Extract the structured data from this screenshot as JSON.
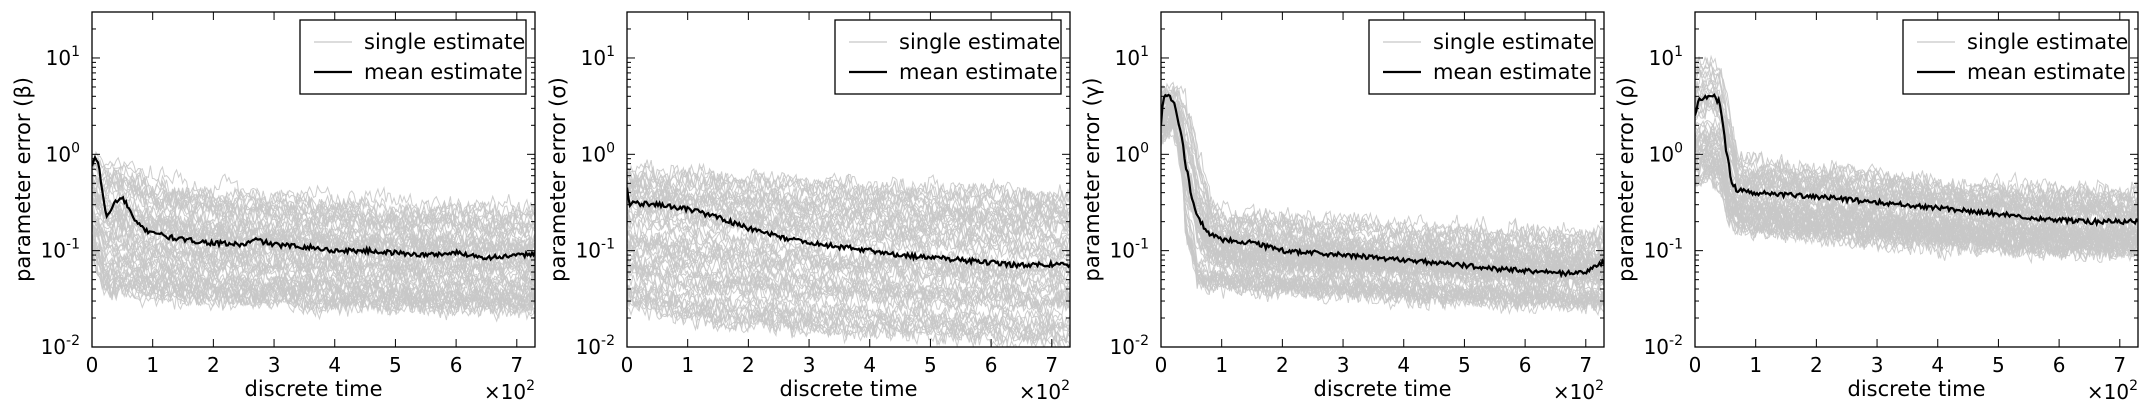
{
  "chart_data": [
    {
      "type": "line",
      "title": "",
      "xlabel": "discrete time",
      "ylabel": "parameter error (β)",
      "x_multiplier": "×10",
      "x_multiplier_exp": "2",
      "xlim": [
        0,
        7.3
      ],
      "ylim": [
        0.01,
        30
      ],
      "yscale": "log",
      "xticks": [
        "0",
        "1",
        "2",
        "3",
        "4",
        "5",
        "6",
        "7"
      ],
      "yticks": [
        "10",
        "10",
        "10",
        "10"
      ],
      "ytick_exps": [
        "-2",
        "-1",
        "0",
        "1"
      ],
      "legend": {
        "position": "top-right",
        "entries": [
          "single estimate",
          "mean estimate"
        ]
      },
      "series": [
        {
          "name": "mean estimate",
          "x": [
            0,
            0.05,
            0.1,
            0.15,
            0.2,
            0.25,
            0.3,
            0.35,
            0.4,
            0.5,
            0.6,
            0.7,
            0.8,
            0.9,
            1.0,
            1.2,
            1.5,
            2.0,
            2.5,
            2.7,
            3.0,
            3.5,
            4.0,
            4.5,
            5.0,
            5.5,
            6.0,
            6.5,
            7.0,
            7.3
          ],
          "values": [
            0.75,
            0.9,
            0.85,
            0.5,
            0.3,
            0.22,
            0.25,
            0.3,
            0.33,
            0.35,
            0.28,
            0.2,
            0.18,
            0.16,
            0.16,
            0.14,
            0.13,
            0.12,
            0.115,
            0.13,
            0.115,
            0.11,
            0.1,
            0.1,
            0.095,
            0.09,
            0.095,
            0.085,
            0.088,
            0.095
          ]
        },
        {
          "name": "single estimate",
          "band_x": [
            0,
            0.2,
            0.5,
            1,
            2,
            3,
            4,
            5,
            6,
            7,
            7.3
          ],
          "band_low": [
            0.1,
            0.04,
            0.04,
            0.035,
            0.033,
            0.03,
            0.028,
            0.027,
            0.026,
            0.025,
            0.025
          ],
          "band_high": [
            0.95,
            0.9,
            0.8,
            0.55,
            0.45,
            0.4,
            0.35,
            0.32,
            0.3,
            0.28,
            0.28
          ],
          "count": 60
        }
      ]
    },
    {
      "type": "line",
      "title": "",
      "xlabel": "discrete time",
      "ylabel": "parameter error (σ)",
      "x_multiplier": "×10",
      "x_multiplier_exp": "2",
      "xlim": [
        0,
        7.3
      ],
      "ylim": [
        0.01,
        30
      ],
      "yscale": "log",
      "xticks": [
        "0",
        "1",
        "2",
        "3",
        "4",
        "5",
        "6",
        "7"
      ],
      "yticks": [
        "10",
        "10",
        "10",
        "10"
      ],
      "ytick_exps": [
        "-2",
        "-1",
        "0",
        "1"
      ],
      "legend": {
        "position": "top-right",
        "entries": [
          "single estimate",
          "mean estimate"
        ]
      },
      "series": [
        {
          "name": "mean estimate",
          "x": [
            0,
            0.03,
            0.06,
            0.1,
            0.2,
            0.5,
            1.0,
            1.5,
            2.0,
            2.5,
            3.0,
            3.5,
            4.0,
            4.5,
            5.0,
            5.5,
            6.0,
            6.5,
            7.0,
            7.3
          ],
          "values": [
            0.45,
            0.32,
            0.3,
            0.31,
            0.31,
            0.3,
            0.27,
            0.22,
            0.17,
            0.14,
            0.12,
            0.11,
            0.1,
            0.09,
            0.085,
            0.08,
            0.075,
            0.07,
            0.072,
            0.072
          ]
        },
        {
          "name": "single estimate",
          "band_x": [
            0,
            0.5,
            1,
            2,
            3,
            4,
            5,
            6,
            7,
            7.3
          ],
          "band_low": [
            0.03,
            0.025,
            0.02,
            0.018,
            0.016,
            0.015,
            0.014,
            0.013,
            0.012,
            0.012
          ],
          "band_high": [
            0.65,
            0.65,
            0.6,
            0.55,
            0.5,
            0.45,
            0.42,
            0.4,
            0.38,
            0.35
          ],
          "count": 60
        }
      ]
    },
    {
      "type": "line",
      "title": "",
      "xlabel": "discrete time",
      "ylabel": "parameter error (γ)",
      "x_multiplier": "×10",
      "x_multiplier_exp": "2",
      "xlim": [
        0,
        7.3
      ],
      "ylim": [
        0.01,
        30
      ],
      "yscale": "log",
      "xticks": [
        "0",
        "1",
        "2",
        "3",
        "4",
        "5",
        "6",
        "7"
      ],
      "yticks": [
        "10",
        "10",
        "10",
        "10"
      ],
      "ytick_exps": [
        "-2",
        "-1",
        "0",
        "1"
      ],
      "legend": {
        "position": "top-right",
        "entries": [
          "single estimate",
          "mean estimate"
        ]
      },
      "series": [
        {
          "name": "mean estimate",
          "x": [
            0,
            0.03,
            0.05,
            0.1,
            0.2,
            0.3,
            0.4,
            0.5,
            0.6,
            0.7,
            0.8,
            1.0,
            1.5,
            2.0,
            2.5,
            3.0,
            3.5,
            4.0,
            4.5,
            5.0,
            5.5,
            6.0,
            6.3,
            6.6,
            7.0,
            7.3
          ],
          "values": [
            2.0,
            3.5,
            4.0,
            4.0,
            3.6,
            2.0,
            0.8,
            0.35,
            0.22,
            0.18,
            0.15,
            0.13,
            0.12,
            0.1,
            0.095,
            0.09,
            0.085,
            0.08,
            0.075,
            0.07,
            0.065,
            0.062,
            0.06,
            0.058,
            0.06,
            0.075
          ]
        },
        {
          "name": "single estimate",
          "band_x": [
            0,
            0.2,
            0.4,
            0.6,
            0.8,
            1,
            2,
            3,
            4,
            5,
            6,
            7,
            7.3
          ],
          "band_low": [
            1.5,
            2.0,
            0.15,
            0.05,
            0.045,
            0.045,
            0.04,
            0.038,
            0.035,
            0.033,
            0.03,
            0.03,
            0.03
          ],
          "band_high": [
            4.5,
            4.5,
            3.5,
            1.0,
            0.35,
            0.25,
            0.22,
            0.2,
            0.18,
            0.17,
            0.16,
            0.15,
            0.15
          ],
          "count": 60
        }
      ]
    },
    {
      "type": "line",
      "title": "",
      "xlabel": "discrete time",
      "ylabel": "parameter error (ρ)",
      "x_multiplier": "×10",
      "x_multiplier_exp": "2",
      "xlim": [
        0,
        7.3
      ],
      "ylim": [
        0.01,
        30
      ],
      "yscale": "log",
      "xticks": [
        "0",
        "1",
        "2",
        "3",
        "4",
        "5",
        "6",
        "7"
      ],
      "yticks": [
        "10",
        "10",
        "10",
        "10"
      ],
      "ytick_exps": [
        "-2",
        "-1",
        "0",
        "1"
      ],
      "legend": {
        "position": "top-right",
        "entries": [
          "single estimate",
          "mean estimate"
        ]
      },
      "series": [
        {
          "name": "mean estimate",
          "x": [
            0,
            0.05,
            0.1,
            0.2,
            0.3,
            0.4,
            0.5,
            0.6,
            0.7,
            1.0,
            1.5,
            2.0,
            2.5,
            3.0,
            3.5,
            4.0,
            4.5,
            5.0,
            5.5,
            6.0,
            6.5,
            7.0,
            7.3
          ],
          "values": [
            2.5,
            3.5,
            3.8,
            4.0,
            4.0,
            3.5,
            1.2,
            0.5,
            0.42,
            0.4,
            0.38,
            0.36,
            0.34,
            0.32,
            0.3,
            0.28,
            0.26,
            0.24,
            0.22,
            0.21,
            0.2,
            0.2,
            0.2
          ]
        },
        {
          "name": "single estimate",
          "band_x": [
            0,
            0.2,
            0.4,
            0.55,
            0.7,
            1,
            2,
            3,
            4,
            5,
            6,
            7,
            7.3
          ],
          "band_low": [
            0.5,
            0.6,
            0.5,
            0.2,
            0.18,
            0.17,
            0.15,
            0.13,
            0.12,
            0.11,
            0.1,
            0.1,
            0.1
          ],
          "band_high": [
            8,
            9,
            8,
            2.5,
            0.9,
            0.8,
            0.7,
            0.6,
            0.5,
            0.45,
            0.42,
            0.4,
            0.4
          ],
          "count": 60
        }
      ]
    }
  ]
}
